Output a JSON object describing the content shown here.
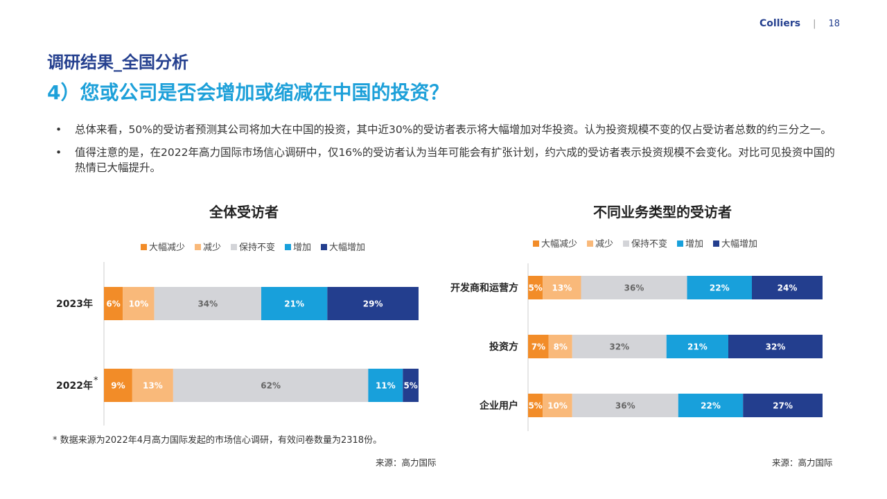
{
  "header": {
    "brand": "Colliers",
    "separator": "|",
    "page_number": "18"
  },
  "section_title": "调研结果_全国分析",
  "main_title": "4）您或公司是否会增加或缩减在中国的投资？",
  "bullet_marker": "•",
  "bullets": [
    "总体来看，50%的受访者预测其公司将加大在中国的投资，其中近30%的受访者表示将大幅增加对华投资。认为投资规模不变的仅占受访者总数的约三分之一。",
    "值得注意的是，在2022年高力国际市场信心调研中，仅16%的受访者认为当年可能会有扩张计划，约六成的受访者表示投资规模不会变化。对比可见投资中国的热情已大幅提升。"
  ],
  "colors": {
    "brand": "#25408F",
    "title_blue": "#1DA0D9",
    "series": [
      "#F28C28",
      "#F9B97A",
      "#D3D4D8",
      "#18A0DB",
      "#233E8E"
    ]
  },
  "chart_data": [
    {
      "type": "bar",
      "orientation": "horizontal",
      "stacked": true,
      "title": "全体受访者",
      "legend_position": "top",
      "categories": [
        "2023年",
        "2022年"
      ],
      "category_marks": [
        "",
        "*"
      ],
      "series": [
        {
          "name": "大幅减少",
          "values": [
            6,
            9
          ]
        },
        {
          "name": "减少",
          "values": [
            10,
            13
          ]
        },
        {
          "name": "保持不变",
          "values": [
            34,
            62
          ]
        },
        {
          "name": "增加",
          "values": [
            21,
            11
          ]
        },
        {
          "name": "大幅增加",
          "values": [
            29,
            5
          ]
        }
      ],
      "unit": "%",
      "xlim": [
        0,
        100
      ],
      "grid": false
    },
    {
      "type": "bar",
      "orientation": "horizontal",
      "stacked": true,
      "title": "不同业务类型的受访者",
      "legend_position": "top",
      "categories": [
        "开发商和运营方",
        "投资方",
        "企业用户"
      ],
      "series": [
        {
          "name": "大幅减少",
          "values": [
            5,
            7,
            5
          ]
        },
        {
          "name": "减少",
          "values": [
            13,
            8,
            10
          ]
        },
        {
          "name": "保持不变",
          "values": [
            36,
            32,
            36
          ]
        },
        {
          "name": "增加",
          "values": [
            22,
            21,
            22
          ]
        },
        {
          "name": "大幅增加",
          "values": [
            24,
            32,
            27
          ]
        }
      ],
      "unit": "%",
      "xlim": [
        0,
        100
      ],
      "grid": false
    }
  ],
  "footnote": "* 数据来源为2022年4月高力国际发起的市场信心调研，有效问卷数量为2318份。",
  "sources": [
    "来源：高力国际",
    "来源：高力国际"
  ]
}
